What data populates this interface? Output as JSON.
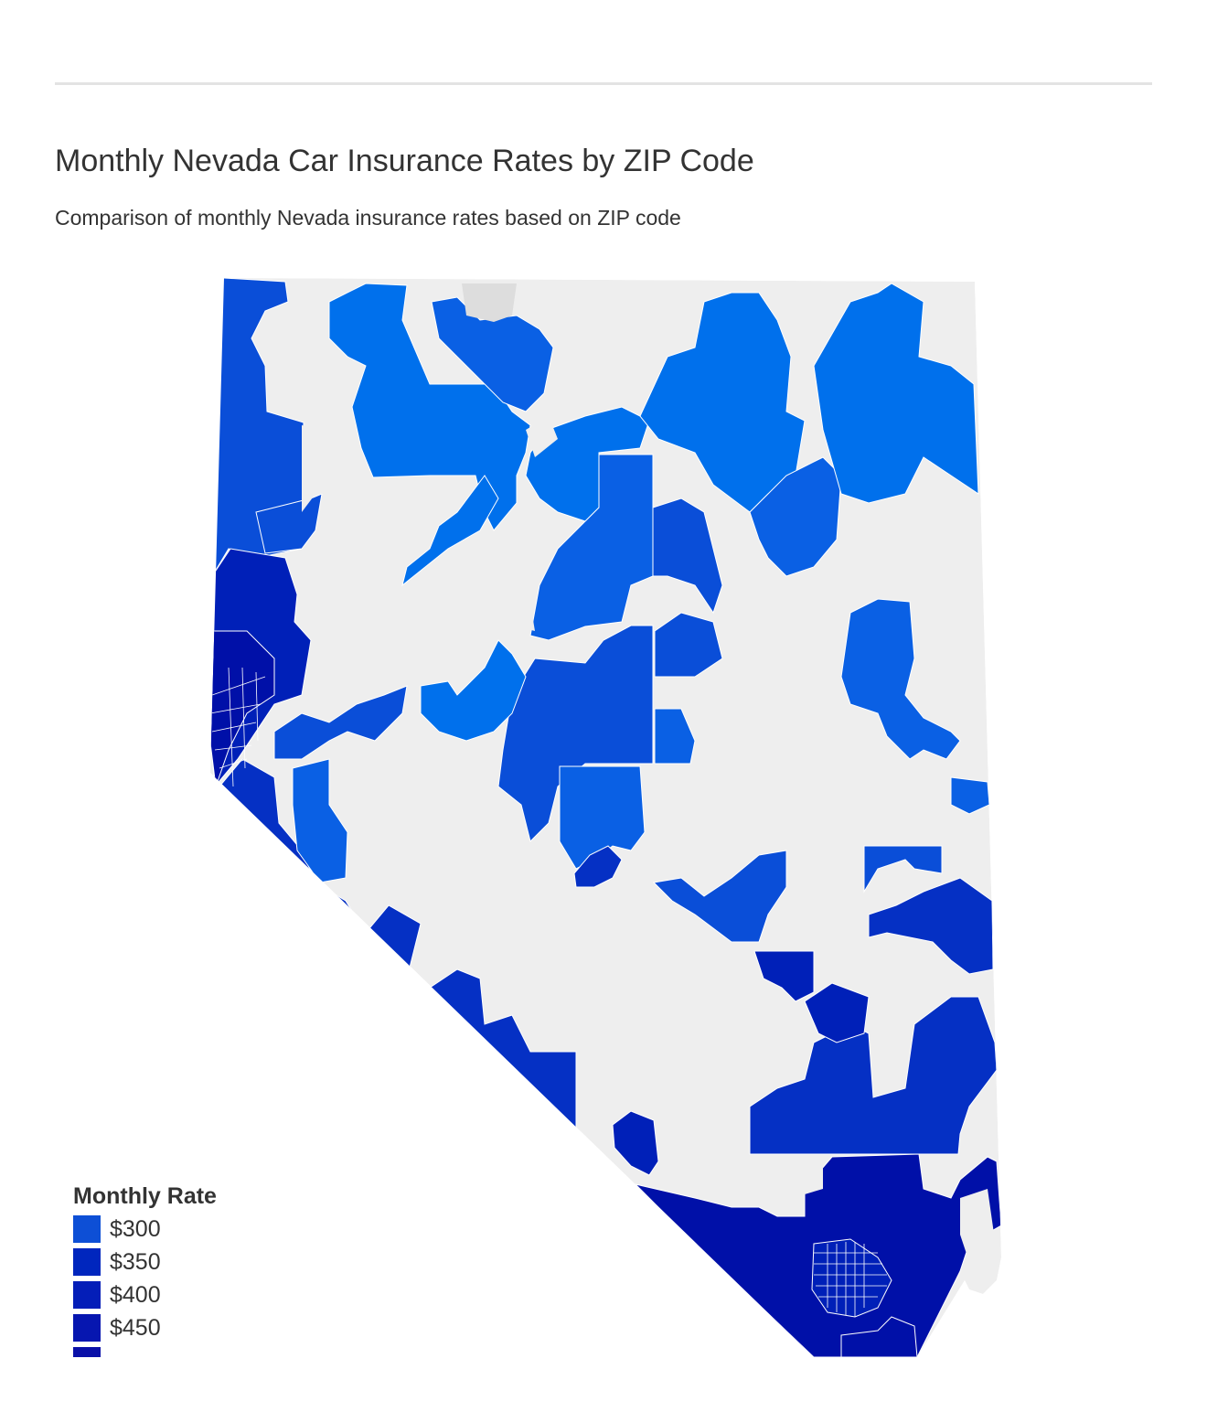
{
  "header": {
    "title": "Monthly Nevada Car Insurance Rates by ZIP Code",
    "subtitle": "Comparison of monthly Nevada insurance rates based on ZIP code"
  },
  "map": {
    "region": "Nevada",
    "base_color": "#eeeeee",
    "no_data_color": "#dddddd",
    "boundary_color": "#ffffff"
  },
  "legend": {
    "title": "Monthly Rate",
    "items": [
      {
        "label": "$300",
        "color": "#0d4fd6"
      },
      {
        "label": "$350",
        "color": "#0026be"
      },
      {
        "label": "$400",
        "color": "#041eb8"
      },
      {
        "label": "$450",
        "color": "#0616b0"
      },
      {
        "label": "",
        "color": "#0a10a8"
      }
    ]
  },
  "colors": {
    "lightest_rate": "#0070ec",
    "light_rate": "#0a60e4",
    "mid_rate": "#0a4ed8",
    "high_rate": "#0530c4",
    "higher_rate": "#0020b8",
    "highest_rate": "#0010a8"
  }
}
